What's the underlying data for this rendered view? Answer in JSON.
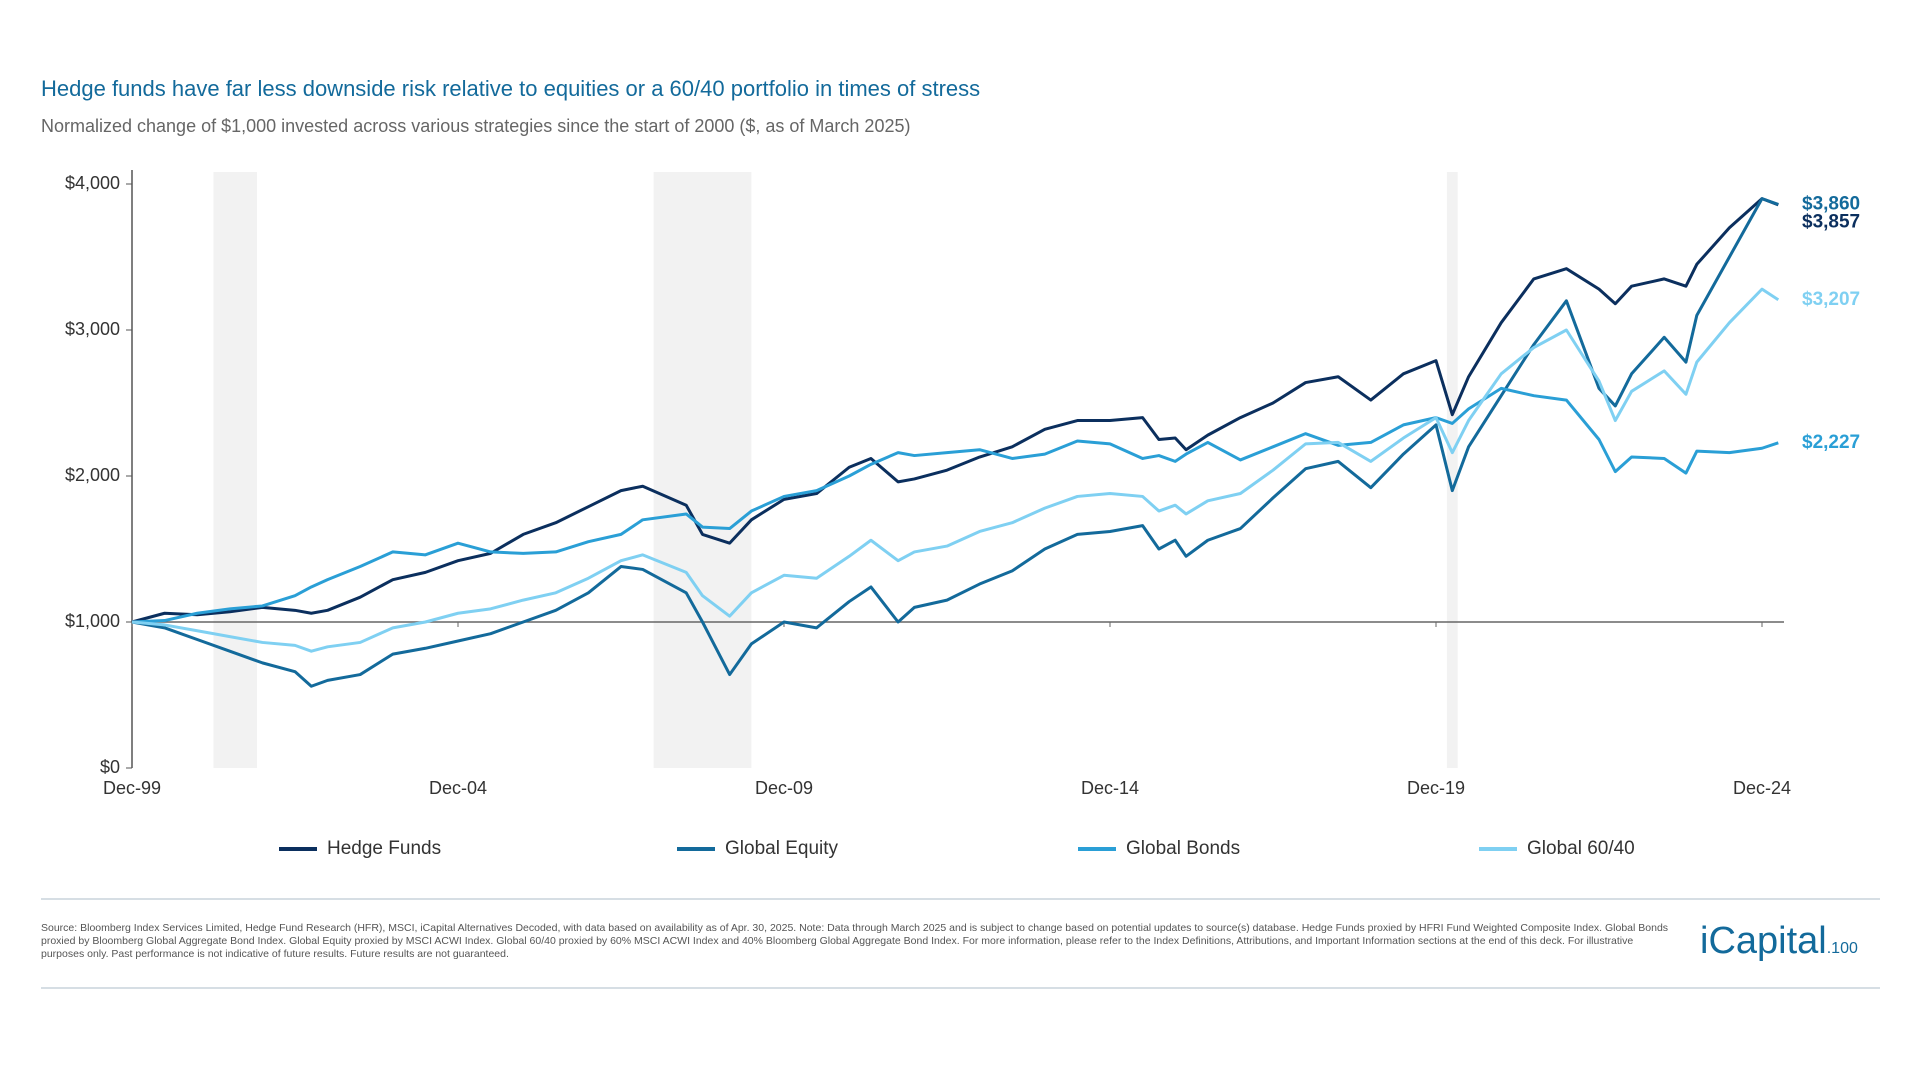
{
  "chart_data": {
    "type": "line",
    "title": "Hedge funds have far less downside risk relative to equities or a 60/40 portfolio in times of stress",
    "subtitle": "Normalized change of $1,000 invested across various strategies since the start of 2000 ($, as of March 2025)",
    "x": [
      "1999-12",
      "2000-06",
      "2000-12",
      "2001-06",
      "2001-12",
      "2002-06",
      "2002-09",
      "2002-12",
      "2003-06",
      "2003-12",
      "2004-06",
      "2004-12",
      "2005-06",
      "2005-12",
      "2006-06",
      "2006-12",
      "2007-06",
      "2007-10",
      "2008-06",
      "2008-09",
      "2009-02",
      "2009-06",
      "2009-12",
      "2010-06",
      "2010-12",
      "2011-04",
      "2011-09",
      "2011-12",
      "2012-06",
      "2012-12",
      "2013-06",
      "2013-12",
      "2014-06",
      "2014-12",
      "2015-06",
      "2015-09",
      "2015-12",
      "2016-02",
      "2016-06",
      "2016-12",
      "2017-06",
      "2017-12",
      "2018-06",
      "2018-12",
      "2019-06",
      "2019-12",
      "2020-03",
      "2020-06",
      "2020-12",
      "2021-06",
      "2021-12",
      "2022-06",
      "2022-09",
      "2022-12",
      "2023-06",
      "2023-10",
      "2023-12",
      "2024-06",
      "2024-12",
      "2025-03"
    ],
    "series": [
      {
        "name": "Hedge Funds",
        "color": "#0b2f5e",
        "end_label": "$3,857",
        "values": [
          1000,
          1060,
          1050,
          1070,
          1100,
          1080,
          1060,
          1080,
          1170,
          1290,
          1340,
          1420,
          1470,
          1600,
          1680,
          1790,
          1900,
          1930,
          1800,
          1600,
          1540,
          1700,
          1840,
          1880,
          2060,
          2120,
          1960,
          1980,
          2040,
          2130,
          2200,
          2320,
          2380,
          2380,
          2400,
          2250,
          2260,
          2180,
          2280,
          2400,
          2500,
          2640,
          2680,
          2520,
          2700,
          2790,
          2420,
          2680,
          3050,
          3350,
          3420,
          3280,
          3180,
          3300,
          3350,
          3300,
          3450,
          3700,
          3900,
          3857
        ]
      },
      {
        "name": "Global Equity",
        "color": "#136a9b",
        "end_label": "$3,860",
        "values": [
          1000,
          960,
          880,
          800,
          720,
          660,
          560,
          600,
          640,
          780,
          820,
          870,
          920,
          1000,
          1080,
          1200,
          1380,
          1360,
          1200,
          1000,
          640,
          850,
          1000,
          960,
          1140,
          1240,
          1000,
          1100,
          1150,
          1260,
          1350,
          1500,
          1600,
          1620,
          1660,
          1500,
          1560,
          1450,
          1560,
          1640,
          1850,
          2050,
          2100,
          1920,
          2150,
          2350,
          1900,
          2200,
          2550,
          2900,
          3200,
          2600,
          2480,
          2700,
          2950,
          2780,
          3100,
          3500,
          3900,
          3860
        ]
      },
      {
        "name": "Global Bonds",
        "color": "#2a9fd6",
        "end_label": "$2,227",
        "values": [
          1000,
          1010,
          1060,
          1090,
          1110,
          1180,
          1240,
          1290,
          1380,
          1480,
          1460,
          1540,
          1480,
          1470,
          1480,
          1550,
          1600,
          1700,
          1740,
          1650,
          1640,
          1760,
          1860,
          1900,
          2000,
          2080,
          2160,
          2140,
          2160,
          2180,
          2120,
          2150,
          2240,
          2220,
          2120,
          2140,
          2100,
          2150,
          2230,
          2110,
          2200,
          2290,
          2210,
          2230,
          2350,
          2400,
          2360,
          2460,
          2600,
          2550,
          2520,
          2250,
          2030,
          2130,
          2120,
          2020,
          2170,
          2160,
          2190,
          2227
        ]
      },
      {
        "name": "Global 60/40",
        "color": "#7fd0f2",
        "end_label": "$3,207",
        "values": [
          1000,
          980,
          940,
          900,
          860,
          840,
          800,
          830,
          860,
          960,
          1000,
          1060,
          1090,
          1150,
          1200,
          1300,
          1420,
          1460,
          1340,
          1180,
          1040,
          1200,
          1320,
          1300,
          1450,
          1560,
          1420,
          1480,
          1520,
          1620,
          1680,
          1780,
          1860,
          1880,
          1860,
          1760,
          1800,
          1740,
          1830,
          1880,
          2040,
          2220,
          2230,
          2100,
          2260,
          2400,
          2160,
          2380,
          2700,
          2880,
          3000,
          2650,
          2380,
          2580,
          2720,
          2560,
          2780,
          3050,
          3280,
          3207
        ]
      }
    ],
    "shaded_periods": [
      [
        "2001-03",
        "2001-11"
      ],
      [
        "2007-12",
        "2009-06"
      ],
      [
        "2020-02",
        "2020-04"
      ]
    ],
    "xlim": [
      "1999-12",
      "2025-03"
    ],
    "xticks": [
      {
        "value": "1999-12",
        "label": "Dec-99"
      },
      {
        "value": "2004-12",
        "label": "Dec-04"
      },
      {
        "value": "2009-12",
        "label": "Dec-09"
      },
      {
        "value": "2014-12",
        "label": "Dec-14"
      },
      {
        "value": "2019-12",
        "label": "Dec-19"
      },
      {
        "value": "2024-12",
        "label": "Dec-24"
      }
    ],
    "ylim": [
      0,
      4000
    ],
    "yticks": [
      {
        "value": 0,
        "label": "$0"
      },
      {
        "value": 1000,
        "label": "$1,000"
      },
      {
        "value": 2000,
        "label": "$2,000"
      },
      {
        "value": 3000,
        "label": "$3,000"
      },
      {
        "value": 4000,
        "label": "$4,000"
      }
    ],
    "reference_line": 1000
  },
  "footer": {
    "source": "Source: Bloomberg Index Services Limited, Hedge Fund Research (HFR), MSCI, iCapital Alternatives Decoded, with data based on availability as of Apr. 30, 2025. Note: Data through March 2025 and is subject to change based on potential updates to source(s) database. Hedge Funds proxied by HFRI Fund Weighted Composite Index. Global Bonds proxied by Bloomberg Global Aggregate Bond Index. Global Equity proxied by MSCI ACWI Index. Global 60/40 proxied by 60% MSCI ACWI Index and 40% Bloomberg Global Aggregate Bond Index. For more information, please refer to the Index Definitions, Attributions, and Important Information sections at the end of this deck. For illustrative purposes only. Past performance is not indicative of future results. Future results are not guaranteed.",
    "logo_main": "iCapital",
    "logo_sub": ".100"
  }
}
